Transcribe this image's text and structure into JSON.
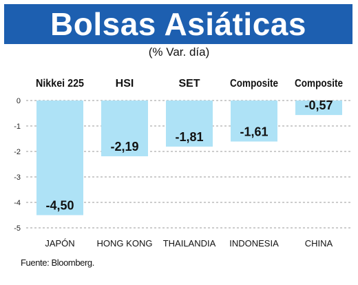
{
  "header": {
    "title": "Bolsas Asiáticas",
    "subtitle": "(% Var. día)"
  },
  "footer": {
    "source": "Fuente: Bloomberg."
  },
  "colors": {
    "title_bg": "#1d5fb0",
    "bar_fill": "#aee2f6",
    "grid_line": "#9a9a9a"
  },
  "chart_data": {
    "type": "bar",
    "categories": [
      "JAPÓN",
      "HONG KONG",
      "THAILANDIA",
      "INDONESIA",
      "CHINA"
    ],
    "index_names": [
      "Nikkei 225",
      "HSI",
      "SET",
      "Composite",
      "Composite"
    ],
    "values": [
      -4.5,
      -2.19,
      -1.81,
      -1.61,
      -0.57
    ],
    "value_labels": [
      "-4,50",
      "-2,19",
      "-1,81",
      "-1,61",
      "-0,57"
    ],
    "y_ticks": [
      "0",
      "-1",
      "-2",
      "-3",
      "-4",
      "-5"
    ],
    "ylim": [
      -5,
      0
    ],
    "grid": true,
    "title": "Bolsas Asiáticas",
    "subtitle": "(% Var. día)"
  }
}
